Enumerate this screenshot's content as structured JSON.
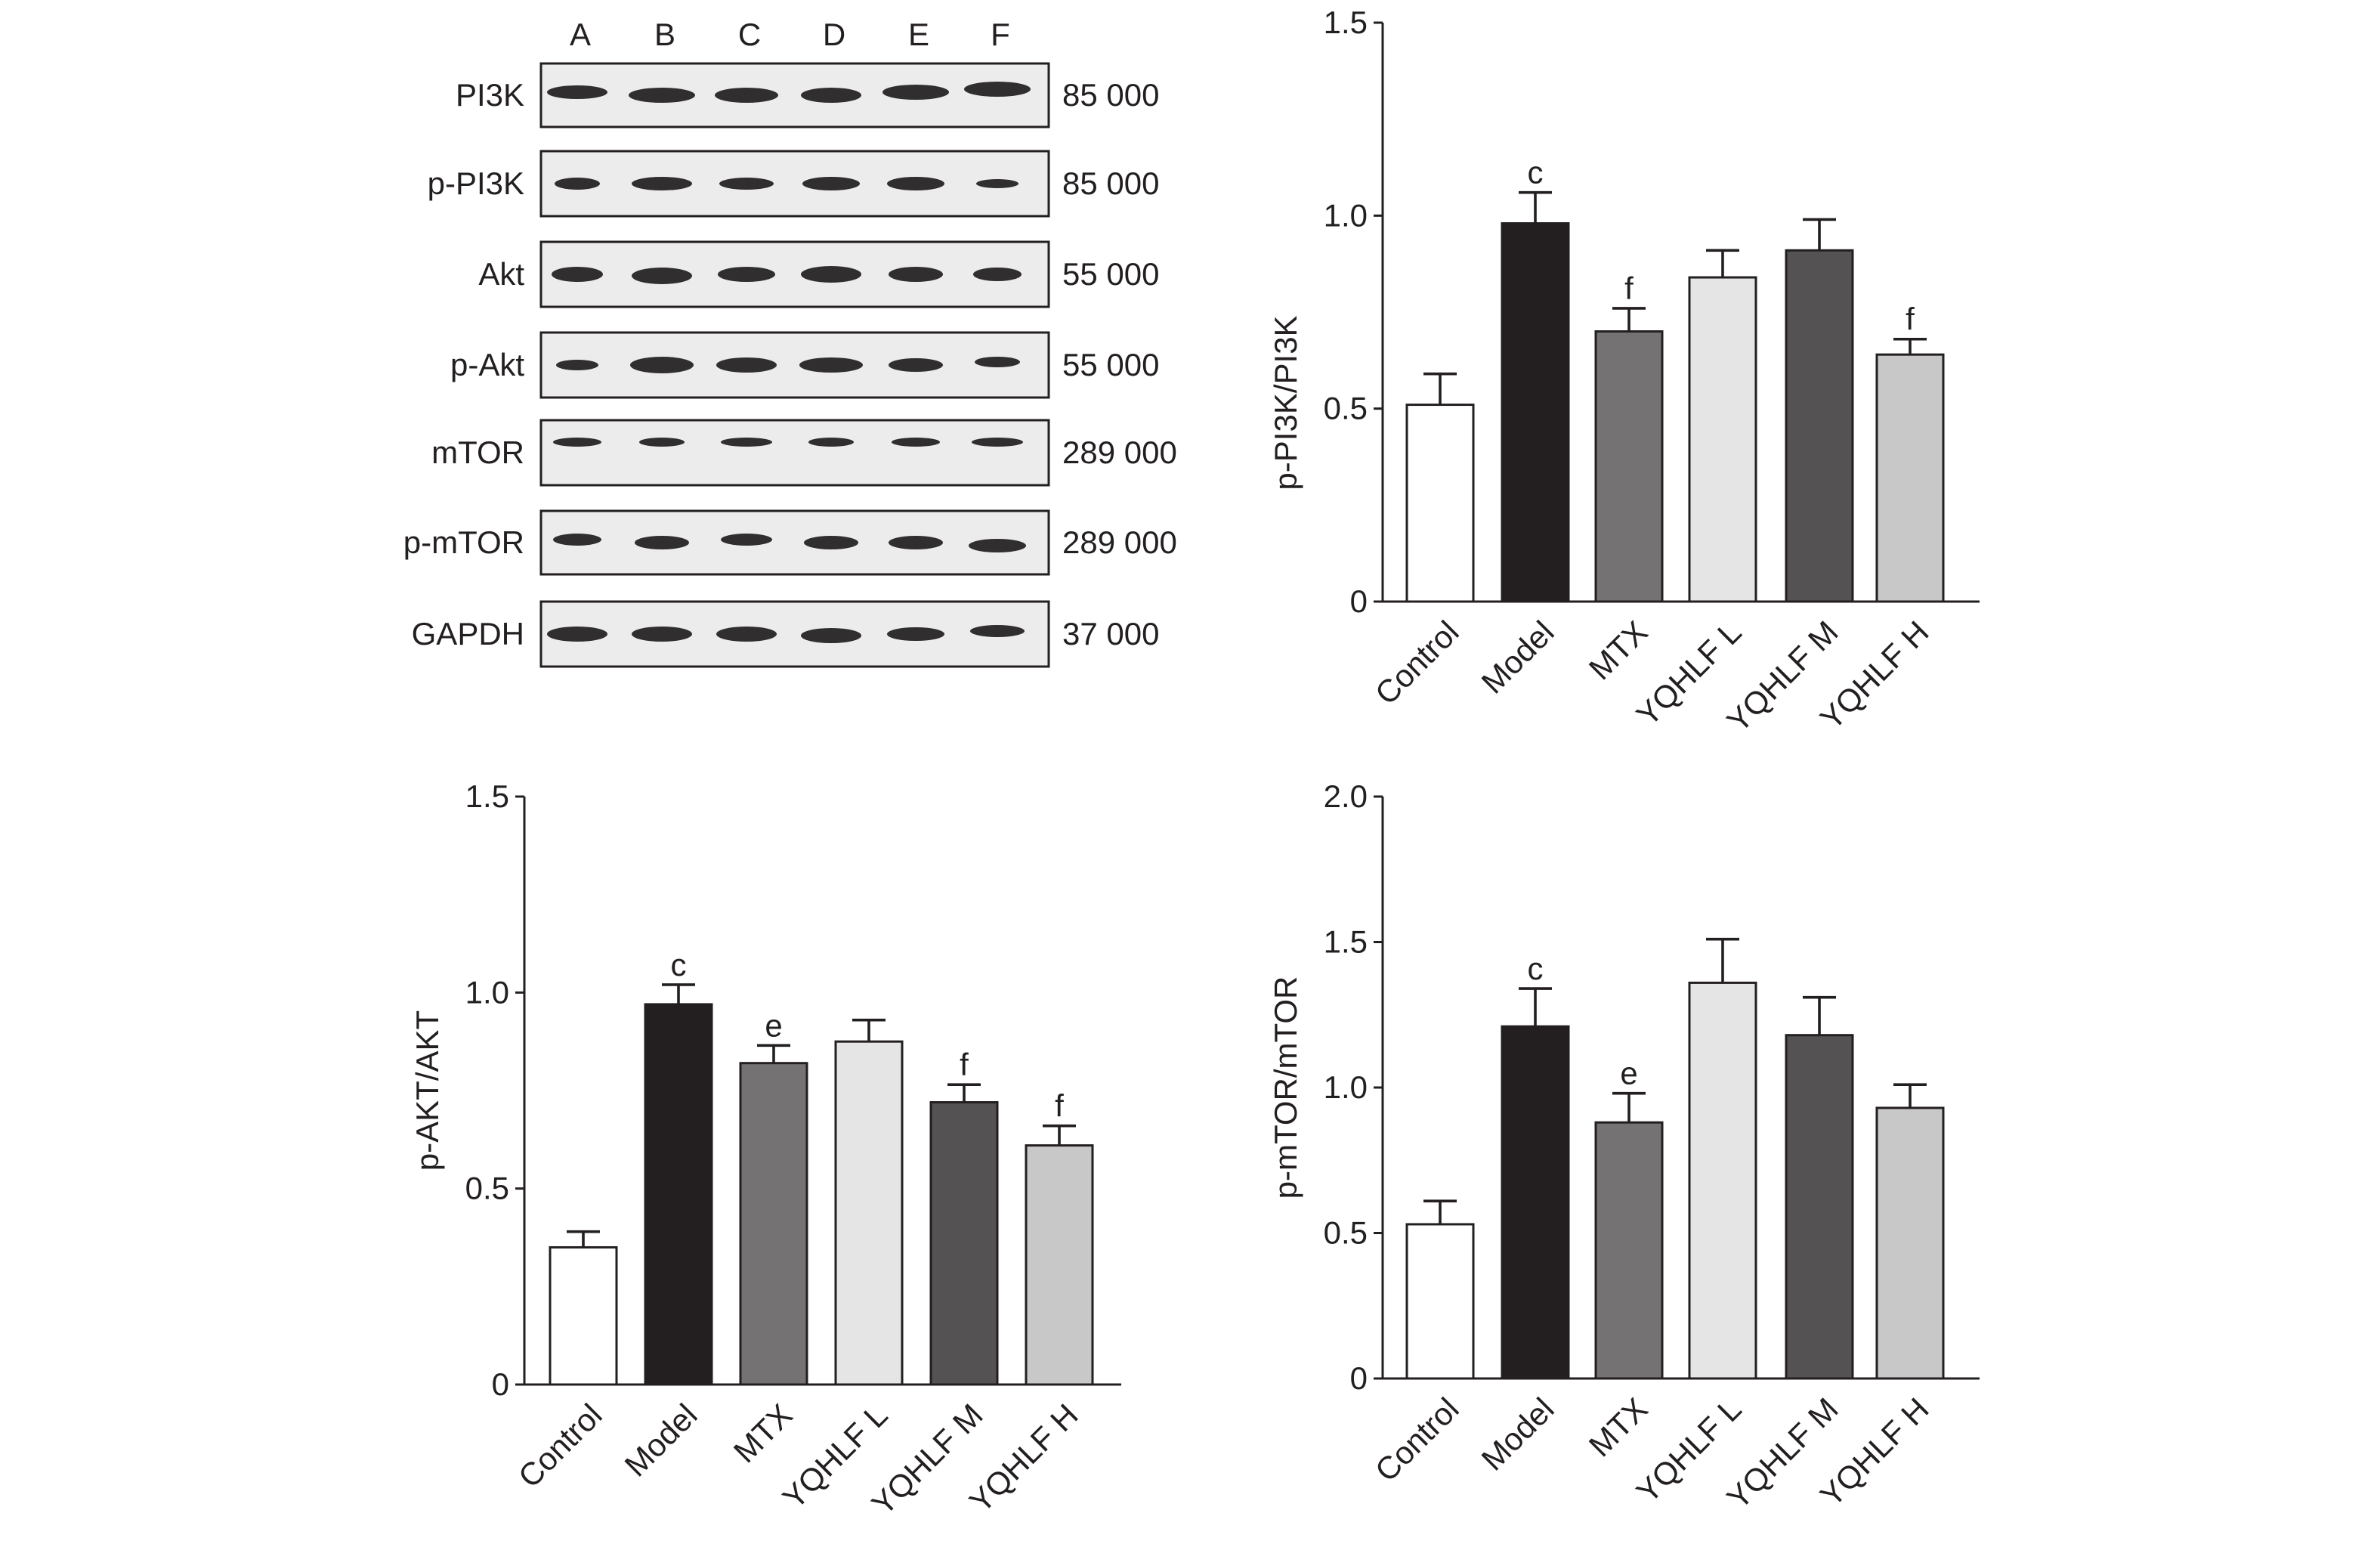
{
  "blot": {
    "lanes": [
      "A",
      "B",
      "C",
      "D",
      "E",
      "F"
    ],
    "rows": [
      {
        "label": "PI3K",
        "mw": "85 000"
      },
      {
        "label": "p-PI3K",
        "mw": "85 000"
      },
      {
        "label": "Akt",
        "mw": "55 000"
      },
      {
        "label": "p-Akt",
        "mw": "55 000"
      },
      {
        "label": "mTOR",
        "mw": "289 000"
      },
      {
        "label": "p-mTOR",
        "mw": "289 000"
      },
      {
        "label": "GAPDH",
        "mw": "37 000"
      }
    ]
  },
  "colors": [
    "#ffffff",
    "#231f20",
    "#747273",
    "#e5e5e5",
    "#545253",
    "#c8c8c8"
  ],
  "chart_data": [
    {
      "type": "bar",
      "title": "",
      "ylabel": "p-PI3K/PI3K",
      "xlabel": "",
      "categories": [
        "Control",
        "Model",
        "MTX",
        "YQHLF L",
        "YQHLF M",
        "YQHLF H"
      ],
      "values": [
        0.51,
        0.98,
        0.7,
        0.84,
        0.91,
        0.64
      ],
      "errors": [
        0.08,
        0.08,
        0.06,
        0.07,
        0.08,
        0.04
      ],
      "annotations": [
        "",
        "c",
        "f",
        "",
        "",
        "f"
      ],
      "ylim": [
        0,
        1.5
      ],
      "yticks": [
        "0",
        "0.5",
        "1.0",
        "1.5"
      ],
      "ytick_values": [
        0,
        0.5,
        1.0,
        1.5
      ]
    },
    {
      "type": "bar",
      "title": "",
      "ylabel": "p-AKT/AKT",
      "xlabel": "",
      "categories": [
        "Control",
        "Model",
        "MTX",
        "YQHLF L",
        "YQHLF M",
        "YQHLF H"
      ],
      "values": [
        0.35,
        0.97,
        0.82,
        0.875,
        0.72,
        0.61
      ],
      "errors": [
        0.04,
        0.05,
        0.045,
        0.055,
        0.045,
        0.05
      ],
      "annotations": [
        "",
        "c",
        "e",
        "",
        "f",
        "f"
      ],
      "ylim": [
        0,
        1.5
      ],
      "yticks": [
        "0",
        "0.5",
        "1.0",
        "1.5"
      ],
      "ytick_values": [
        0,
        0.5,
        1.0,
        1.5
      ]
    },
    {
      "type": "bar",
      "title": "",
      "ylabel": "p-mTOR/mTOR",
      "xlabel": "",
      "categories": [
        "Control",
        "Model",
        "MTX",
        "YQHLF L",
        "YQHLF M",
        "YQHLF H"
      ],
      "values": [
        0.53,
        1.21,
        0.88,
        1.36,
        1.18,
        0.93
      ],
      "errors": [
        0.08,
        0.13,
        0.1,
        0.15,
        0.13,
        0.08
      ],
      "annotations": [
        "",
        "c",
        "e",
        "",
        "",
        ""
      ],
      "ylim": [
        0,
        2.0
      ],
      "yticks": [
        "0",
        "0.5",
        "1.0",
        "1.5",
        "2.0"
      ],
      "ytick_values": [
        0,
        0.5,
        1.0,
        1.5,
        2.0
      ]
    }
  ]
}
